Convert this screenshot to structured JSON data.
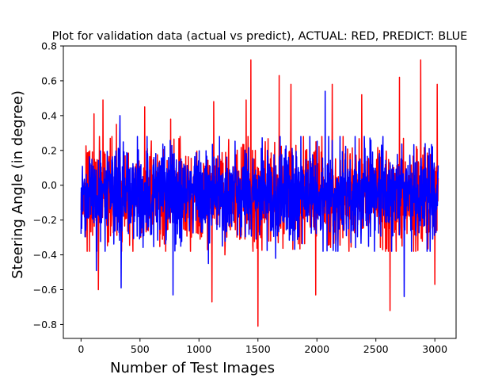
{
  "chart_data": {
    "type": "line",
    "title": "Plot for validation data (actual vs predict), ACTUAL: RED, PREDICT: BLUE",
    "xlabel": "Number of Test Images",
    "ylabel": "Steering Angle (in degree)",
    "xlim": [
      -150,
      3180
    ],
    "ylim": [
      -0.88,
      0.8
    ],
    "xticks": [
      0,
      500,
      1000,
      1500,
      2000,
      2500,
      3000
    ],
    "yticks": [
      -0.8,
      -0.6,
      -0.4,
      -0.2,
      0.0,
      0.2,
      0.4,
      0.6,
      0.8
    ],
    "xtick_labels": [
      "0",
      "500",
      "1000",
      "1500",
      "2000",
      "2500",
      "3000"
    ],
    "ytick_labels": [
      "−0.8",
      "−0.6",
      "−0.4",
      "−0.2",
      "0.0",
      "0.2",
      "0.4",
      "0.6",
      "0.8"
    ],
    "grid": false,
    "legend": "none",
    "n_points": 3030,
    "series": [
      {
        "role": "actual",
        "color": "#ff0000",
        "typical_range": [
          -0.3,
          0.2
        ],
        "peaks": [
          {
            "x": 110,
            "y": 0.41
          },
          {
            "x": 147,
            "y": -0.6
          },
          {
            "x": 186,
            "y": 0.49
          },
          {
            "x": 300,
            "y": 0.35
          },
          {
            "x": 540,
            "y": 0.45
          },
          {
            "x": 760,
            "y": 0.38
          },
          {
            "x": 1110,
            "y": -0.67
          },
          {
            "x": 1125,
            "y": 0.48
          },
          {
            "x": 1220,
            "y": -0.4
          },
          {
            "x": 1400,
            "y": 0.49
          },
          {
            "x": 1440,
            "y": 0.72
          },
          {
            "x": 1500,
            "y": -0.81
          },
          {
            "x": 1680,
            "y": 0.63
          },
          {
            "x": 1780,
            "y": 0.58
          },
          {
            "x": 1990,
            "y": -0.63
          },
          {
            "x": 2130,
            "y": 0.58
          },
          {
            "x": 2380,
            "y": 0.52
          },
          {
            "x": 2620,
            "y": -0.72
          },
          {
            "x": 2700,
            "y": 0.62
          },
          {
            "x": 2880,
            "y": 0.72
          },
          {
            "x": 3000,
            "y": -0.57
          },
          {
            "x": 3020,
            "y": 0.58
          }
        ]
      },
      {
        "role": "predict",
        "color": "#0000ff",
        "typical_range": [
          -0.3,
          0.2
        ],
        "peaks": [
          {
            "x": 130,
            "y": -0.49
          },
          {
            "x": 330,
            "y": 0.4
          },
          {
            "x": 340,
            "y": -0.59
          },
          {
            "x": 780,
            "y": -0.63
          },
          {
            "x": 1080,
            "y": -0.45
          },
          {
            "x": 1650,
            "y": -0.42
          },
          {
            "x": 2070,
            "y": 0.54
          },
          {
            "x": 2740,
            "y": -0.64
          }
        ]
      }
    ]
  }
}
